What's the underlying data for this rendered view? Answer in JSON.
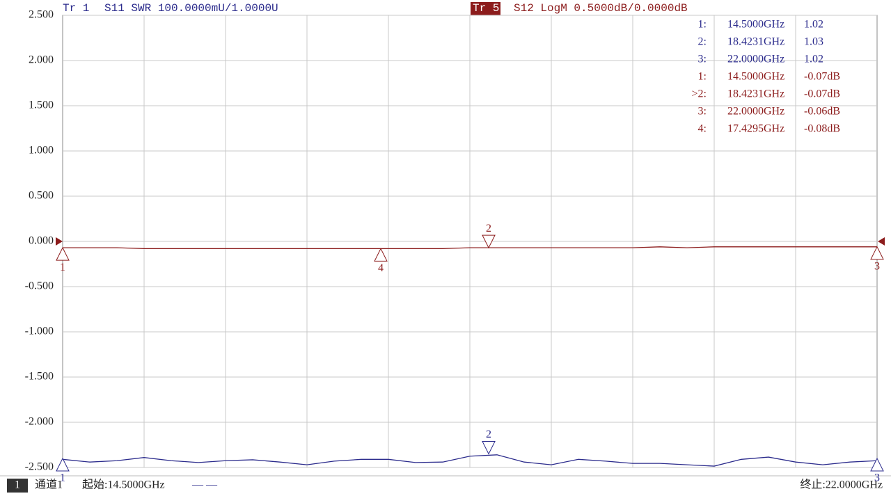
{
  "header": {
    "trace1": "Tr 1",
    "trace1_info": "S11 SWR 100.0000mU/1.0000U",
    "trace5": "Tr 5",
    "trace5_info": "S12 LogM 0.5000dB/0.0000dB"
  },
  "chart_data": {
    "type": "line",
    "grid": true,
    "xlim": [
      14.5,
      22
    ],
    "ylim": [
      -2.5,
      2.5
    ],
    "y2lim": [
      1.0,
      2.0
    ],
    "yticks": [
      {
        "value": 2.5,
        "label": "2.500"
      },
      {
        "value": 2,
        "label": "2.000"
      },
      {
        "value": 1.5,
        "label": "1.500"
      },
      {
        "value": 1,
        "label": "1.000"
      },
      {
        "value": 0.5,
        "label": "0.500"
      },
      {
        "value": 0,
        "label": "0.000"
      },
      {
        "value": -0.5,
        "label": "-0.500"
      },
      {
        "value": -1,
        "label": "-1.000"
      },
      {
        "value": -1.5,
        "label": "-1.500"
      },
      {
        "value": -2,
        "label": "-2.000"
      },
      {
        "value": -2.5,
        "label": "-2.500"
      }
    ],
    "x": [
      14.5,
      14.75,
      15,
      15.25,
      15.5,
      15.75,
      16,
      16.25,
      16.5,
      16.75,
      17,
      17.25,
      17.5,
      17.75,
      18,
      18.25,
      18.5,
      18.75,
      19,
      19.25,
      19.5,
      19.75,
      20,
      20.25,
      20.5,
      20.75,
      21,
      21.25,
      21.5,
      21.75,
      22
    ],
    "series": [
      {
        "color": "#2b2b8c",
        "axis": "y2",
        "values": [
          1.018,
          1.012,
          1.015,
          1.022,
          1.015,
          1.011,
          1.015,
          1.017,
          1.012,
          1.006,
          1.014,
          1.018,
          1.018,
          1.011,
          1.012,
          1.025,
          1.028,
          1.012,
          1.006,
          1.018,
          1.014,
          1.009,
          1.009,
          1.006,
          1.003,
          1.018,
          1.023,
          1.012,
          1.006,
          1.012,
          1.015
        ],
        "markers": {
          "names": [
            "1",
            "2",
            "3"
          ],
          "row_labels": [
            "1:",
            "2:",
            "3:"
          ],
          "x": [
            14.5,
            18.4231,
            22
          ],
          "x_labels": [
            "14.5000GHz",
            "18.4231GHz",
            "22.0000GHz"
          ],
          "values": [
            1.02,
            1.03,
            1.02
          ]
        }
      },
      {
        "color": "#8c1c1c",
        "values": [
          -0.07,
          -0.07,
          -0.07,
          -0.08,
          -0.08,
          -0.08,
          -0.08,
          -0.08,
          -0.08,
          -0.08,
          -0.08,
          -0.08,
          -0.08,
          -0.08,
          -0.08,
          -0.07,
          -0.07,
          -0.07,
          -0.07,
          -0.07,
          -0.07,
          -0.07,
          -0.06,
          -0.07,
          -0.06,
          -0.06,
          -0.06,
          -0.06,
          -0.06,
          -0.06,
          -0.06
        ],
        "markers": {
          "names": [
            "1",
            "2",
            "3",
            "4"
          ],
          "row_labels": [
            "1:",
            ">2:",
            "3:",
            "4:"
          ],
          "x": [
            14.5,
            18.4231,
            22,
            17.4295
          ],
          "x_labels": [
            "14.5000GHz",
            "18.4231GHz",
            "22.0000GHz",
            "17.4295GHz"
          ],
          "values": [
            -0.07,
            -0.07,
            -0.06,
            -0.08
          ],
          "value_labels": [
            "-0.07dB",
            "-0.07dB",
            "-0.06dB",
            "-0.08dB"
          ]
        }
      }
    ]
  },
  "footer": {
    "channel_index": "1",
    "channel": "通道1",
    "start": "起始:14.5000GHz",
    "mode": "— —",
    "stop": "终止:22.0000GHz"
  }
}
